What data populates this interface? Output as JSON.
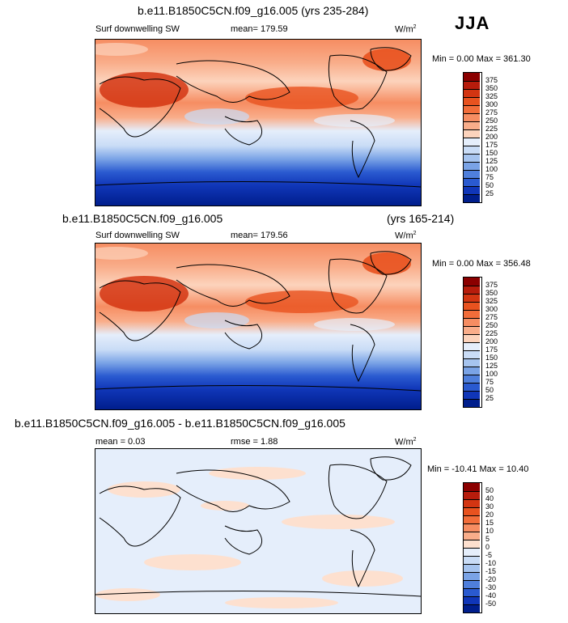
{
  "season": "JJA",
  "panels": [
    {
      "title": "b.e11.B1850C5CN.f09_g16.005 (yrs 235-284)",
      "variable": "Surf downwelling SW",
      "stat": "mean= 179.59",
      "units_base": "W/m",
      "units_exp": "2",
      "minmax": "Min =  0.00 Max = 361.30"
    },
    {
      "title_left": "b.e11.B1850C5CN.f09_g16.005",
      "title_right": "(yrs 165-214)",
      "variable": "Surf downwelling SW",
      "stat": "mean= 179.56",
      "units_base": "W/m",
      "units_exp": "2",
      "minmax": "Min =  0.00 Max = 356.48"
    },
    {
      "title": "b.e11.B1850C5CN.f09_g16.005 - b.e11.B1850C5CN.f09_g16.005",
      "stat_left": "mean =   0.03",
      "stat_mid": "rmse =   1.88",
      "units_base": "W/m",
      "units_exp": "2",
      "minmax": "Min = -10.41  Max =  10.40"
    }
  ],
  "colorbar_abs": {
    "labels": [
      "375",
      "350",
      "325",
      "300",
      "275",
      "250",
      "225",
      "200",
      "175",
      "150",
      "125",
      "100",
      "75",
      "50",
      "25"
    ],
    "colors": [
      "#8b0000",
      "#b71c0c",
      "#d33512",
      "#e8521f",
      "#f26d3a",
      "#f68d62",
      "#f9ad8a",
      "#fcd3bc",
      "#e5eefb",
      "#c9dcf6",
      "#a6c4ef",
      "#7aa3e6",
      "#4f7fdc",
      "#2a5ad0",
      "#1036b8",
      "#001e8c"
    ]
  },
  "colorbar_diff": {
    "labels": [
      "50",
      "40",
      "30",
      "20",
      "15",
      "10",
      "5",
      "0",
      "-5",
      "-10",
      "-15",
      "-20",
      "-30",
      "-40",
      "-50"
    ],
    "colors": [
      "#8b0000",
      "#b71c0c",
      "#d33512",
      "#e8521f",
      "#f26d3a",
      "#f68d62",
      "#f9ad8a",
      "#fde0cf",
      "#e5eefb",
      "#c9dcf6",
      "#a6c4ef",
      "#7aa3e6",
      "#4f7fdc",
      "#2a5ad0",
      "#1036b8",
      "#001e8c"
    ]
  },
  "chart_data": [
    {
      "type": "heatmap",
      "title": "b.e11.B1850C5CN.f09_g16.005 (yrs 235-284)",
      "variable": "Surf downwelling SW",
      "units": "W/m2",
      "season": "JJA",
      "mean": 179.59,
      "min": 0.0,
      "max": 361.3,
      "contour_levels": [
        25,
        50,
        75,
        100,
        125,
        150,
        175,
        200,
        225,
        250,
        275,
        300,
        325,
        350,
        375
      ]
    },
    {
      "type": "heatmap",
      "title": "b.e11.B1850C5CN.f09_g16.005 (yrs 165-214)",
      "variable": "Surf downwelling SW",
      "units": "W/m2",
      "season": "JJA",
      "mean": 179.56,
      "min": 0.0,
      "max": 356.48,
      "contour_levels": [
        25,
        50,
        75,
        100,
        125,
        150,
        175,
        200,
        225,
        250,
        275,
        300,
        325,
        350,
        375
      ]
    },
    {
      "type": "heatmap",
      "title": "b.e11.B1850C5CN.f09_g16.005 - b.e11.B1850C5CN.f09_g16.005",
      "units": "W/m2",
      "season": "JJA",
      "mean": 0.03,
      "rmse": 1.88,
      "min": -10.41,
      "max": 10.4,
      "contour_levels": [
        -50,
        -40,
        -30,
        -20,
        -15,
        -10,
        -5,
        0,
        5,
        10,
        15,
        20,
        30,
        40,
        50
      ]
    }
  ]
}
